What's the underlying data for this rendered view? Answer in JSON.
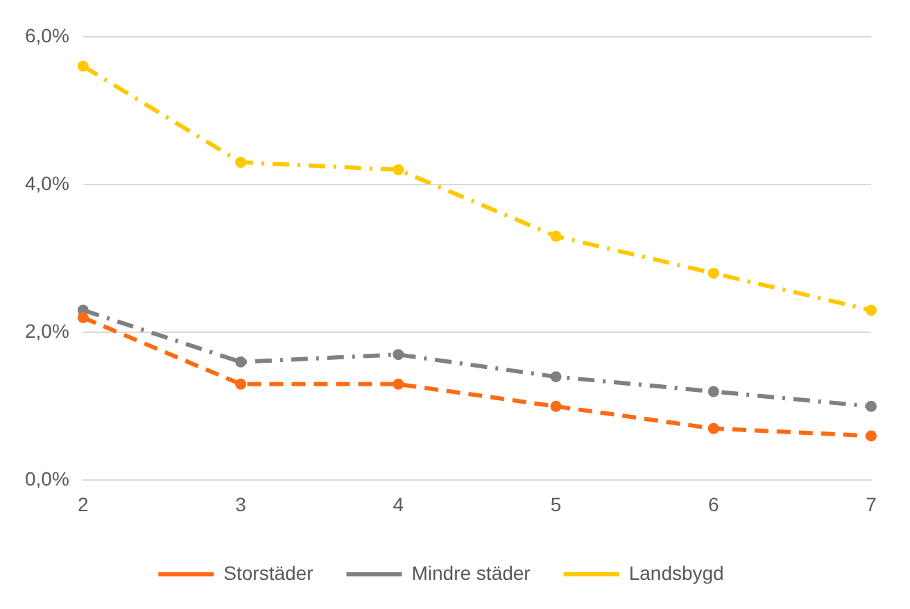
{
  "chart_data": {
    "type": "line",
    "categories": [
      "2",
      "3",
      "4",
      "5",
      "6",
      "7"
    ],
    "series": [
      {
        "name": "Storstäder",
        "color": "#ff6a13",
        "line_style": "dashed",
        "values": [
          2.2,
          1.3,
          1.3,
          1.0,
          0.7,
          0.6
        ]
      },
      {
        "name": "Mindre städer",
        "color": "#808080",
        "line_style": "dashdot",
        "values": [
          2.3,
          1.6,
          1.7,
          1.4,
          1.2,
          1.0
        ]
      },
      {
        "name": "Landsbygd",
        "color": "#ffc800",
        "line_style": "dashdot",
        "values": [
          5.6,
          4.3,
          4.2,
          3.3,
          2.8,
          2.3
        ]
      }
    ],
    "ylim": [
      0,
      6
    ],
    "yticks": [
      {
        "value": 0,
        "label": "0,0%"
      },
      {
        "value": 2,
        "label": "2,0%"
      },
      {
        "value": 4,
        "label": "4,0%"
      },
      {
        "value": 6,
        "label": "6,0%"
      }
    ],
    "grid": "y",
    "legend": "bottom",
    "marker": "circle"
  }
}
